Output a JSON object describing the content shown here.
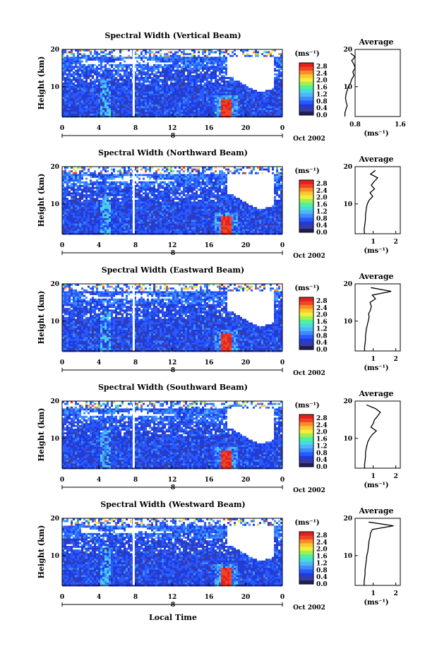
{
  "figure": {
    "date_label": "Oct 2002",
    "day_label": "8",
    "xlabel": "Local Time",
    "x_ticks": [
      "0",
      "4",
      "8",
      "12",
      "16",
      "20",
      "0"
    ],
    "y_ticks": [
      "20",
      "10"
    ],
    "ylabel": "Height (km)",
    "colorbar": {
      "unit": "(ms⁻¹)",
      "ticks": [
        "2.8",
        "2.4",
        "2.0",
        "1.6",
        "1.2",
        "0.8",
        "0.4",
        "0.0"
      ],
      "range": [
        0.0,
        3.0
      ],
      "colors": [
        "#1e1e5a",
        "#3c3ca0",
        "#1e3cdc",
        "#285aff",
        "#3c8cff",
        "#50b4ff",
        "#46dcdc",
        "#50f0a0",
        "#a0f050",
        "#f0f03c",
        "#ffc832",
        "#ff8c28",
        "#f04628",
        "#e61e1e"
      ]
    },
    "avg_title": "Average",
    "avg_xlabel": "(ms⁻¹)"
  },
  "chart_data": [
    {
      "type": "heatmap",
      "title": "Spectral Width (Vertical Beam)",
      "xlabel": "Local Time",
      "ylabel": "Height (km)",
      "x_range_hours": [
        0,
        24
      ],
      "y_range_km": [
        2,
        20
      ],
      "data_gap_hour": 7.8,
      "notable_feature": {
        "hour": 17.8,
        "height_km": [
          2,
          7
        ],
        "value_ms": 2.8
      },
      "average_profile": {
        "title": "Average",
        "xlabel": "(ms⁻¹)",
        "x_ticks": [
          "0.8",
          "1.6"
        ],
        "xlim": [
          0.8,
          1.6
        ],
        "height_km": [
          2,
          3,
          4,
          5,
          6,
          7,
          8,
          9,
          10,
          11,
          12,
          13,
          14,
          15,
          16,
          17,
          18,
          19
        ],
        "value": [
          0.62,
          0.62,
          0.64,
          0.66,
          0.64,
          0.63,
          0.64,
          0.66,
          0.68,
          0.72,
          0.74,
          0.78,
          0.76,
          0.8,
          0.78,
          0.74,
          0.8,
          0.72
        ]
      }
    },
    {
      "type": "heatmap",
      "title": "Spectral Width (Northward Beam)",
      "xlabel": "Local Time",
      "ylabel": "Height (km)",
      "x_range_hours": [
        0,
        24
      ],
      "y_range_km": [
        2,
        20
      ],
      "data_gap_hour": 7.8,
      "notable_feature": {
        "hour": 17.8,
        "height_km": [
          2,
          6
        ],
        "value_ms": 2.8
      },
      "average_profile": {
        "title": "Average",
        "xlabel": "(ms⁻¹)",
        "x_ticks": [
          "1",
          "2"
        ],
        "xlim": [
          0.2,
          2.2
        ],
        "height_km": [
          2,
          3,
          4,
          5,
          6,
          7,
          8,
          9,
          10,
          11,
          12,
          13,
          14,
          15,
          16,
          17,
          18,
          19
        ],
        "value": [
          0.62,
          0.6,
          0.62,
          0.64,
          0.66,
          0.66,
          0.68,
          0.7,
          0.74,
          0.82,
          0.98,
          0.86,
          1.06,
          0.92,
          1.04,
          1.2,
          0.88,
          1.1
        ]
      }
    },
    {
      "type": "heatmap",
      "title": "Spectral Width (Eastward Beam)",
      "xlabel": "Local Time",
      "ylabel": "Height (km)",
      "x_range_hours": [
        0,
        24
      ],
      "y_range_km": [
        2,
        20
      ],
      "data_gap_hour": 7.8,
      "notable_feature": {
        "hour": 17.8,
        "height_km": [
          2,
          6
        ],
        "value_ms": 2.8
      },
      "average_profile": {
        "title": "Average",
        "xlabel": "(ms⁻¹)",
        "x_ticks": [
          "1",
          "2"
        ],
        "xlim": [
          0.2,
          2.2
        ],
        "height_km": [
          2,
          3,
          4,
          5,
          6,
          7,
          8,
          9,
          10,
          11,
          12,
          13,
          14,
          15,
          16,
          17,
          18,
          19
        ],
        "value": [
          0.62,
          0.62,
          0.64,
          0.66,
          0.66,
          0.68,
          0.7,
          0.74,
          0.78,
          0.82,
          0.8,
          0.88,
          0.92,
          0.86,
          1.1,
          0.96,
          1.8,
          0.9
        ]
      }
    },
    {
      "type": "heatmap",
      "title": "Spectral Width (Southward Beam)",
      "xlabel": "Local Time",
      "ylabel": "Height (km)",
      "x_range_hours": [
        0,
        24
      ],
      "y_range_km": [
        2,
        20
      ],
      "data_gap_hour": 7.8,
      "notable_feature": {
        "hour": 17.8,
        "height_km": [
          2,
          6
        ],
        "value_ms": 2.8
      },
      "average_profile": {
        "title": "Average",
        "xlabel": "(ms⁻¹)",
        "x_ticks": [
          "1",
          "2"
        ],
        "xlim": [
          0.2,
          2.2
        ],
        "height_km": [
          2,
          3,
          4,
          5,
          6,
          7,
          8,
          9,
          10,
          11,
          12,
          13,
          14,
          15,
          16,
          17,
          18,
          19
        ],
        "value": [
          0.62,
          0.62,
          0.64,
          0.66,
          0.66,
          0.68,
          0.72,
          0.76,
          0.84,
          0.96,
          1.14,
          0.9,
          1.0,
          1.06,
          1.2,
          1.32,
          1.1,
          0.7
        ]
      }
    },
    {
      "type": "heatmap",
      "title": "Spectral Width (Westward Beam)",
      "xlabel": "Local Time",
      "ylabel": "Height (km)",
      "x_range_hours": [
        0,
        24
      ],
      "y_range_km": [
        2,
        20
      ],
      "data_gap_hour": 7.8,
      "notable_feature": {
        "hour": 17.8,
        "height_km": [
          2,
          7
        ],
        "value_ms": 2.8
      },
      "average_profile": {
        "title": "Average",
        "xlabel": "(ms⁻¹)",
        "x_ticks": [
          "1",
          "2"
        ],
        "xlim": [
          0.2,
          2.2
        ],
        "height_km": [
          2,
          3,
          4,
          5,
          6,
          7,
          8,
          9,
          10,
          11,
          12,
          13,
          14,
          15,
          16,
          17,
          18,
          19
        ],
        "value": [
          0.6,
          0.6,
          0.62,
          0.64,
          0.64,
          0.66,
          0.68,
          0.7,
          0.72,
          0.76,
          0.78,
          0.8,
          0.82,
          0.86,
          0.88,
          0.96,
          1.9,
          0.8
        ]
      }
    }
  ]
}
